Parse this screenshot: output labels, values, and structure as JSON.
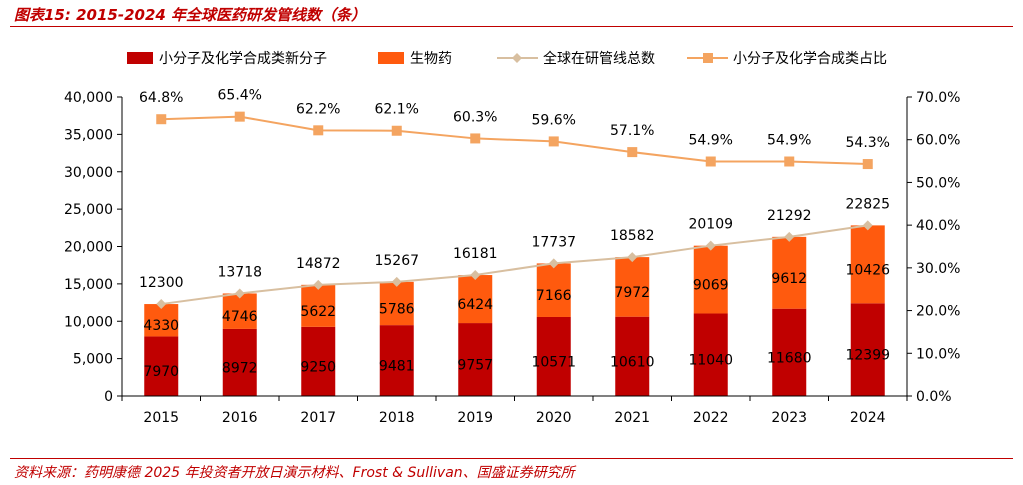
{
  "figure": {
    "title": "图表15:  2015-2024 年全球医药研发管线数（条）",
    "source": "资料来源：药明康德 2025 年投资者开放日演示材料、Frost & Sullivan、国盛证券研究所"
  },
  "colors": {
    "small_molecule": "#C00000",
    "biologics": "#FF5A0E",
    "total_line": "#D8BFA0",
    "share_line": "#F4A460",
    "rule": "#C00000"
  },
  "chart_data": {
    "type": "bar",
    "stacked": true,
    "categories": [
      "2015",
      "2016",
      "2017",
      "2018",
      "2019",
      "2020",
      "2021",
      "2022",
      "2023",
      "2024"
    ],
    "series": [
      {
        "name": "小分子及化学合成类新分子",
        "kind": "bar",
        "axis": "left",
        "values": [
          7970,
          8972,
          9250,
          9481,
          9757,
          10571,
          10610,
          11040,
          11680,
          12399
        ]
      },
      {
        "name": "生物药",
        "kind": "bar",
        "axis": "left",
        "values": [
          4330,
          4746,
          5622,
          5786,
          6424,
          7166,
          7972,
          9069,
          9612,
          10426
        ]
      },
      {
        "name": "全球在研管线总数",
        "kind": "line",
        "axis": "left",
        "values": [
          12300,
          13718,
          14872,
          15267,
          16181,
          17737,
          18582,
          20109,
          21292,
          22825
        ]
      },
      {
        "name": "小分子及化学合成类占比",
        "kind": "line",
        "axis": "right",
        "values": [
          64.8,
          65.4,
          62.2,
          62.1,
          60.3,
          59.6,
          57.1,
          54.9,
          54.9,
          54.3
        ],
        "labels": [
          "64.8%",
          "65.4%",
          "62.2%",
          "62.1%",
          "60.3%",
          "59.6%",
          "57.1%",
          "54.9%",
          "54.9%",
          "54.3%"
        ]
      }
    ],
    "left_axis": {
      "min": 0,
      "max": 40000,
      "step": 5000,
      "ticks": [
        "0",
        "5,000",
        "10,000",
        "15,000",
        "20,000",
        "25,000",
        "30,000",
        "35,000",
        "40,000"
      ]
    },
    "right_axis": {
      "min": 0,
      "max": 70,
      "step": 10,
      "ticks": [
        "0.0%",
        "10.0%",
        "20.0%",
        "30.0%",
        "40.0%",
        "50.0%",
        "60.0%",
        "70.0%"
      ]
    },
    "legend_position": "top",
    "grid": false
  }
}
